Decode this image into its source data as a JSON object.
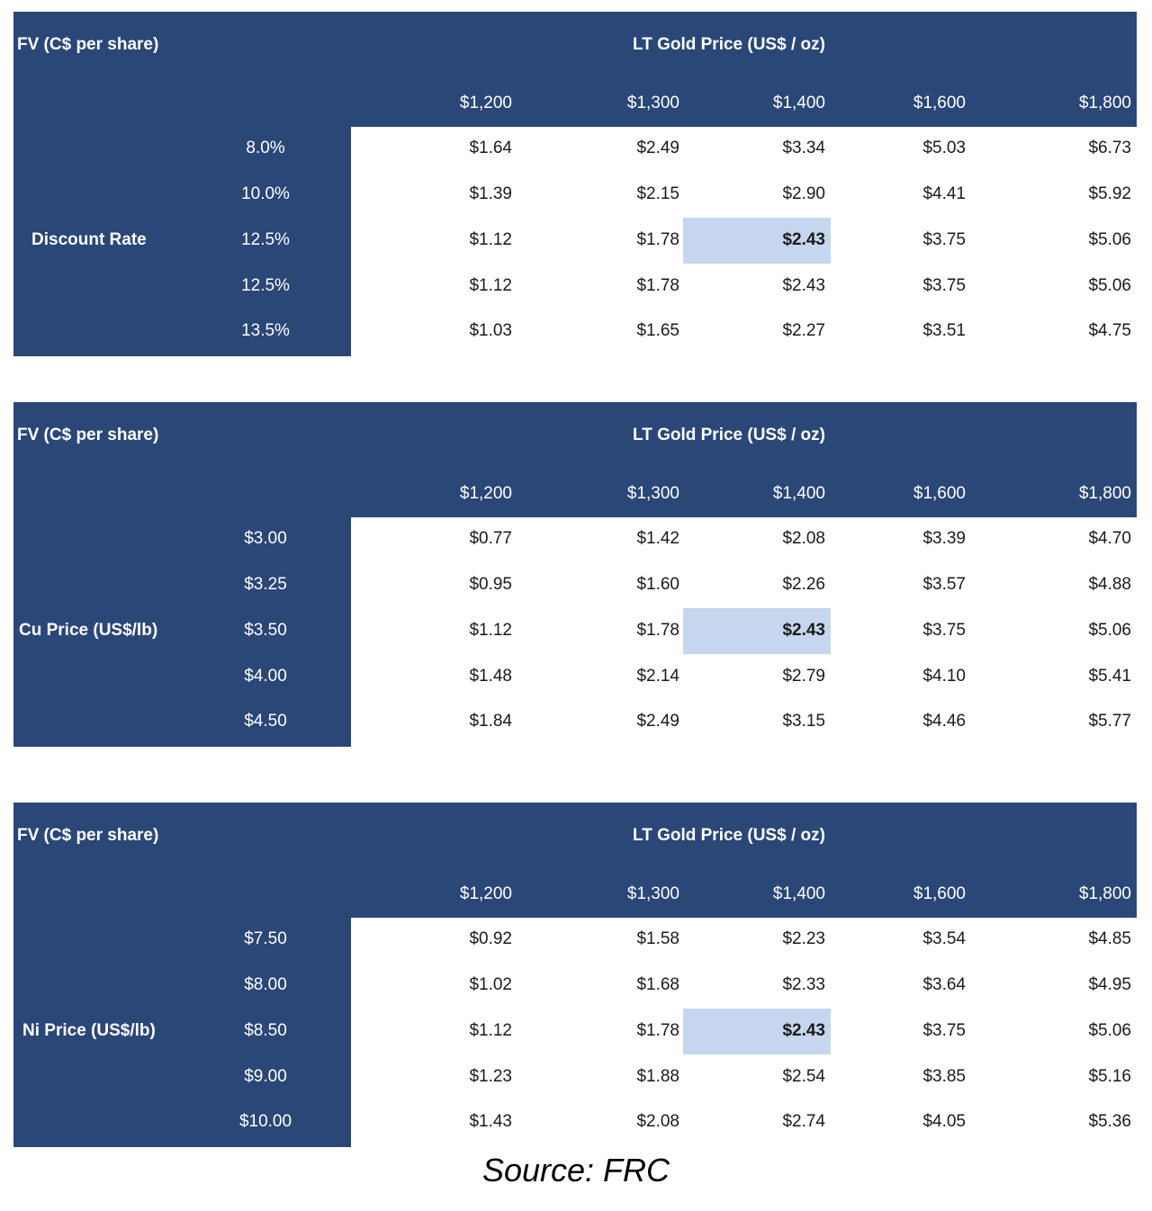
{
  "tables": [
    {
      "fv_title": "FV (C$ per share)",
      "lt_title": "LT Gold Price (US$ / oz)",
      "row_label": "Discount Rate",
      "columns": [
        "$1,200",
        "$1,300",
        "$1,400",
        "$1,600",
        "$1,800"
      ],
      "rows": [
        {
          "label": "8.0%",
          "cells": [
            "$1.64",
            "$2.49",
            "$3.34",
            "$5.03",
            "$6.73"
          ]
        },
        {
          "label": "10.0%",
          "cells": [
            "$1.39",
            "$2.15",
            "$2.90",
            "$4.41",
            "$5.92"
          ]
        },
        {
          "label": "12.5%",
          "cells": [
            "$1.12",
            "$1.78",
            "$2.43",
            "$3.75",
            "$5.06"
          ]
        },
        {
          "label": "12.5%",
          "cells": [
            "$1.12",
            "$1.78",
            "$2.43",
            "$3.75",
            "$5.06"
          ]
        },
        {
          "label": "13.5%",
          "cells": [
            "$1.03",
            "$1.65",
            "$2.27",
            "$3.51",
            "$4.75"
          ]
        }
      ]
    },
    {
      "fv_title": "FV (C$ per share)",
      "lt_title": "LT Gold Price (US$ / oz)",
      "row_label": "Cu Price (US$/lb)",
      "columns": [
        "$1,200",
        "$1,300",
        "$1,400",
        "$1,600",
        "$1,800"
      ],
      "rows": [
        {
          "label": "$3.00",
          "cells": [
            "$0.77",
            "$1.42",
            "$2.08",
            "$3.39",
            "$4.70"
          ]
        },
        {
          "label": "$3.25",
          "cells": [
            "$0.95",
            "$1.60",
            "$2.26",
            "$3.57",
            "$4.88"
          ]
        },
        {
          "label": "$3.50",
          "cells": [
            "$1.12",
            "$1.78",
            "$2.43",
            "$3.75",
            "$5.06"
          ]
        },
        {
          "label": "$4.00",
          "cells": [
            "$1.48",
            "$2.14",
            "$2.79",
            "$4.10",
            "$5.41"
          ]
        },
        {
          "label": "$4.50",
          "cells": [
            "$1.84",
            "$2.49",
            "$3.15",
            "$4.46",
            "$5.77"
          ]
        }
      ]
    },
    {
      "fv_title": "FV (C$ per share)",
      "lt_title": "LT Gold Price (US$ / oz)",
      "row_label": "Ni Price (US$/lb)",
      "columns": [
        "$1,200",
        "$1,300",
        "$1,400",
        "$1,600",
        "$1,800"
      ],
      "rows": [
        {
          "label": "$7.50",
          "cells": [
            "$0.92",
            "$1.58",
            "$2.23",
            "$3.54",
            "$4.85"
          ]
        },
        {
          "label": "$8.00",
          "cells": [
            "$1.02",
            "$1.68",
            "$2.33",
            "$3.64",
            "$4.95"
          ]
        },
        {
          "label": "$8.50",
          "cells": [
            "$1.12",
            "$1.78",
            "$2.43",
            "$3.75",
            "$5.06"
          ]
        },
        {
          "label": "$9.00",
          "cells": [
            "$1.23",
            "$1.88",
            "$2.54",
            "$3.85",
            "$5.16"
          ]
        },
        {
          "label": "$10.00",
          "cells": [
            "$1.43",
            "$2.08",
            "$2.74",
            "$4.05",
            "$5.36"
          ]
        }
      ]
    }
  ],
  "highlight": {
    "row": 2,
    "col": 2,
    "fill": "#c6d6ee"
  },
  "colors": {
    "header_bg": "#2b4778",
    "header_text": "#ffffff",
    "cell_text": "#1a1a1a"
  },
  "source": "Source: FRC"
}
